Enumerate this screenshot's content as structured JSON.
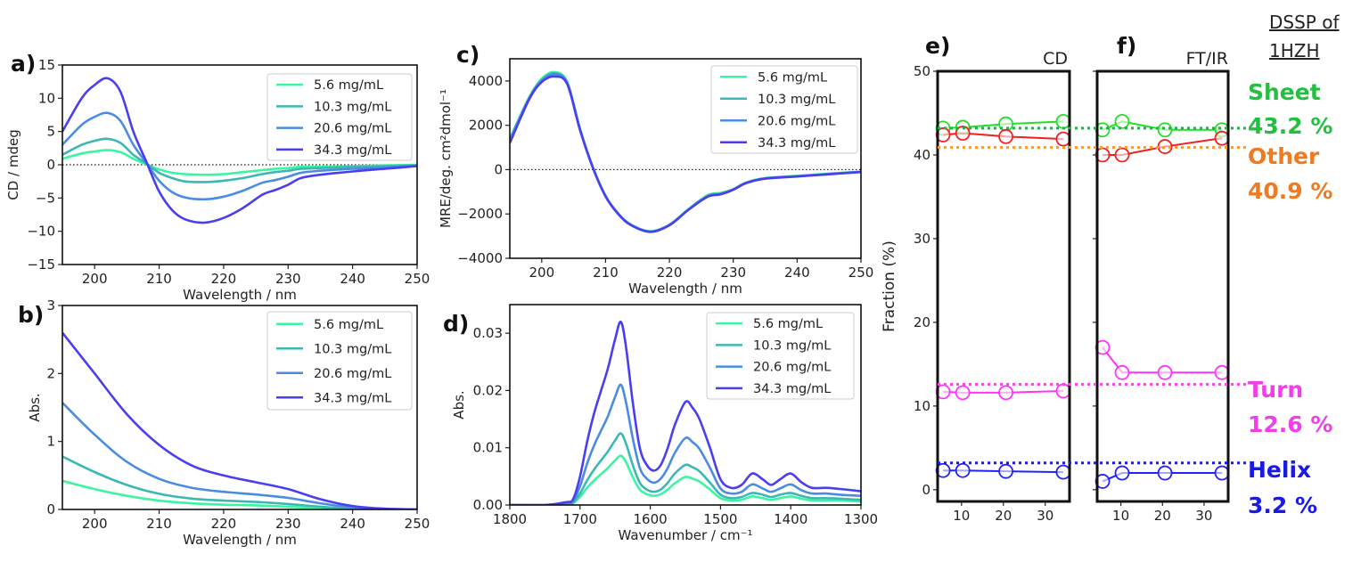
{
  "chart_data": [
    {
      "panel": "a)",
      "type": "line",
      "xlabel": "Wavelength / nm",
      "ylabel": "CD / mdeg",
      "xlim": [
        195,
        250
      ],
      "ylim": [
        -15,
        15
      ],
      "xticks": [
        200,
        210,
        220,
        230,
        240,
        250
      ],
      "xtick_labels": [
        "200",
        "210",
        "220",
        "230",
        "240",
        "250"
      ],
      "yticks": [
        -15,
        -10,
        -5,
        0,
        5,
        10,
        15
      ],
      "ytick_labels": [
        "−15",
        "−10",
        "−5",
        "0",
        "5",
        "10",
        "15"
      ],
      "zero_line": true,
      "legend": "top-right",
      "x": [
        195,
        198,
        200,
        202,
        204,
        206,
        208,
        210,
        212,
        214,
        217,
        220,
        223,
        226,
        228,
        230,
        232,
        235,
        240,
        245,
        250
      ],
      "series": [
        {
          "name": "5.6 mg/mL",
          "color": "#3cf5a0",
          "values": [
            0.9,
            1.7,
            2,
            2.2,
            1.9,
            0.9,
            0.1,
            -0.7,
            -1.2,
            -1.4,
            -1.5,
            -1.4,
            -1.1,
            -0.8,
            -0.6,
            -0.5,
            -0.3,
            -0.3,
            -0.2,
            -0.1,
            0
          ]
        },
        {
          "name": "10.3 mg/mL",
          "color": "#3cb8b4",
          "values": [
            1.5,
            3,
            3.6,
            3.9,
            3.3,
            1.5,
            0.2,
            -1.2,
            -2,
            -2.5,
            -2.6,
            -2.4,
            -2,
            -1.4,
            -1.1,
            -0.9,
            -0.6,
            -0.5,
            -0.3,
            -0.2,
            -0.1
          ]
        },
        {
          "name": "20.6 mg/mL",
          "color": "#4a8ce2",
          "values": [
            3,
            6,
            7.2,
            7.8,
            6.6,
            3,
            0.3,
            -2.4,
            -4.1,
            -4.9,
            -5.2,
            -4.8,
            -3.9,
            -2.7,
            -2.3,
            -1.8,
            -1.2,
            -0.9,
            -0.6,
            -0.4,
            -0.1
          ]
        },
        {
          "name": "34.3 mg/mL",
          "color": "#4a3ef0",
          "values": [
            5,
            10,
            12,
            13,
            11,
            5,
            0.5,
            -4,
            -6.8,
            -8.2,
            -8.7,
            -8,
            -6.5,
            -4.5,
            -3.8,
            -3,
            -2,
            -1.5,
            -1,
            -0.6,
            -0.2
          ]
        }
      ]
    },
    {
      "panel": "b)",
      "type": "line",
      "xlabel": "Wavelength / nm",
      "ylabel": "Abs.",
      "xlim": [
        195,
        250
      ],
      "ylim": [
        0,
        3
      ],
      "xticks": [
        200,
        210,
        220,
        230,
        240,
        250
      ],
      "xtick_labels": [
        "200",
        "210",
        "220",
        "230",
        "240",
        "250"
      ],
      "yticks": [
        0,
        1,
        2,
        3
      ],
      "ytick_labels": [
        "0",
        "1",
        "2",
        "3"
      ],
      "zero_line": false,
      "legend": "top-right",
      "x": [
        195,
        200,
        205,
        210,
        215,
        220,
        225,
        230,
        235,
        240,
        245,
        250
      ],
      "series": [
        {
          "name": "5.6 mg/mL",
          "color": "#3cf5a0",
          "values": [
            0.42,
            0.3,
            0.2,
            0.13,
            0.09,
            0.07,
            0.06,
            0.04,
            0.02,
            0.01,
            0,
            0
          ]
        },
        {
          "name": "10.3 mg/mL",
          "color": "#3cb8b4",
          "values": [
            0.78,
            0.55,
            0.36,
            0.23,
            0.16,
            0.13,
            0.11,
            0.08,
            0.04,
            0.01,
            0,
            0
          ]
        },
        {
          "name": "20.6 mg/mL",
          "color": "#4a8ce2",
          "values": [
            1.57,
            1.1,
            0.7,
            0.45,
            0.32,
            0.26,
            0.22,
            0.17,
            0.09,
            0.03,
            0.01,
            0
          ]
        },
        {
          "name": "34.3 mg/mL",
          "color": "#4a3ef0",
          "values": [
            2.6,
            2.0,
            1.4,
            0.95,
            0.65,
            0.5,
            0.4,
            0.3,
            0.15,
            0.05,
            0.01,
            0
          ]
        }
      ]
    },
    {
      "panel": "c)",
      "type": "line",
      "xlabel": "Wavelength / nm",
      "ylabel": "MRE/deg. cm²dmol⁻¹",
      "xlim": [
        195,
        250
      ],
      "ylim": [
        -4000,
        5000
      ],
      "xticks": [
        200,
        210,
        220,
        230,
        240,
        250
      ],
      "xtick_labels": [
        "200",
        "210",
        "220",
        "230",
        "240",
        "250"
      ],
      "yticks": [
        -4000,
        -2000,
        0,
        2000,
        4000
      ],
      "ytick_labels": [
        "−4000",
        "−2000",
        "0",
        "2000",
        "4000"
      ],
      "zero_line": true,
      "legend": "top-right",
      "x": [
        195,
        198,
        200,
        202,
        204,
        206,
        208,
        210,
        212,
        214,
        217,
        220,
        223,
        226,
        228,
        230,
        232,
        235,
        240,
        245,
        250
      ],
      "series": [
        {
          "name": "5.6 mg/mL",
          "color": "#3cf5a0",
          "values": [
            1400,
            3250,
            4100,
            4400,
            3950,
            1850,
            120,
            -1180,
            -1980,
            -2480,
            -2780,
            -2480,
            -1780,
            -1150,
            -1050,
            -880,
            -580,
            -380,
            -280,
            -180,
            -90
          ]
        },
        {
          "name": "10.3 mg/mL",
          "color": "#3cb8b4",
          "values": [
            1350,
            3220,
            4050,
            4350,
            3920,
            1820,
            110,
            -1190,
            -1990,
            -2490,
            -2790,
            -2490,
            -1790,
            -1180,
            -1080,
            -890,
            -590,
            -390,
            -290,
            -190,
            -95
          ]
        },
        {
          "name": "20.6 mg/mL",
          "color": "#4a8ce2",
          "values": [
            1300,
            3200,
            4000,
            4300,
            3900,
            1800,
            100,
            -1200,
            -2000,
            -2500,
            -2800,
            -2500,
            -1800,
            -1200,
            -1100,
            -900,
            -600,
            -400,
            -300,
            -200,
            -100
          ]
        },
        {
          "name": "34.3 mg/mL",
          "color": "#4a3ef0",
          "values": [
            1200,
            3150,
            3950,
            4200,
            3850,
            1780,
            90,
            -1210,
            -2010,
            -2510,
            -2810,
            -2510,
            -1810,
            -1220,
            -1120,
            -910,
            -610,
            -410,
            -310,
            -210,
            -110
          ]
        }
      ]
    },
    {
      "panel": "d)",
      "type": "line",
      "xlabel": "Wavenumber / cm⁻¹",
      "ylabel": "Abs.",
      "xlim": [
        1800,
        1300
      ],
      "ylim": [
        0,
        0.035
      ],
      "xticks": [
        1800,
        1700,
        1600,
        1500,
        1400,
        1300
      ],
      "xtick_labels": [
        "1800",
        "1700",
        "1600",
        "1500",
        "1400",
        "1300"
      ],
      "yticks": [
        0,
        0.01,
        0.02,
        0.03
      ],
      "ytick_labels": [
        "0.00",
        "0.01",
        "0.02",
        "0.03"
      ],
      "zero_line": false,
      "legend": "top-right",
      "x": [
        1800,
        1750,
        1720,
        1710,
        1700,
        1690,
        1680,
        1670,
        1660,
        1650,
        1642,
        1635,
        1625,
        1615,
        1605,
        1595,
        1585,
        1575,
        1565,
        1550,
        1540,
        1530,
        1515,
        1500,
        1485,
        1470,
        1455,
        1440,
        1428,
        1415,
        1400,
        1385,
        1370,
        1350,
        1330,
        1300
      ],
      "series": [
        {
          "name": "5.6 mg/mL",
          "color": "#3cf5a0",
          "values": [
            0,
            0,
            0.0001,
            0.0003,
            0.0014,
            0.003,
            0.0043,
            0.0054,
            0.0065,
            0.0078,
            0.0086,
            0.0076,
            0.0049,
            0.0027,
            0.0019,
            0.0016,
            0.0019,
            0.0027,
            0.0038,
            0.0049,
            0.0046,
            0.0041,
            0.0027,
            0.0012,
            0.0008,
            0.0009,
            0.0015,
            0.0012,
            0.0009,
            0.0012,
            0.0015,
            0.0011,
            0.0008,
            0.0008,
            0.0008,
            0.0006
          ]
        },
        {
          "name": "10.3 mg/mL",
          "color": "#3cb8b4",
          "values": [
            0,
            0,
            0.0002,
            0.0004,
            0.002,
            0.0043,
            0.0062,
            0.0078,
            0.0094,
            0.0113,
            0.0125,
            0.0109,
            0.007,
            0.0039,
            0.0027,
            0.0023,
            0.0027,
            0.0039,
            0.0055,
            0.007,
            0.0066,
            0.0059,
            0.0039,
            0.0018,
            0.0012,
            0.0014,
            0.0021,
            0.0018,
            0.0014,
            0.0018,
            0.0021,
            0.0016,
            0.0012,
            0.0012,
            0.0011,
            0.0009
          ]
        },
        {
          "name": "20.6 mg/mL",
          "color": "#4a8ce2",
          "values": [
            0,
            0,
            0.0003,
            0.0007,
            0.0033,
            0.0072,
            0.0104,
            0.013,
            0.0156,
            0.0189,
            0.021,
            0.0182,
            0.0117,
            0.0065,
            0.0046,
            0.0039,
            0.0046,
            0.0065,
            0.0091,
            0.0117,
            0.011,
            0.0098,
            0.0065,
            0.0029,
            0.002,
            0.0023,
            0.0036,
            0.0029,
            0.0023,
            0.0029,
            0.0036,
            0.0026,
            0.002,
            0.002,
            0.0018,
            0.0016
          ]
        },
        {
          "name": "34.3 mg/mL",
          "color": "#4a3ef0",
          "values": [
            0,
            0,
            0.0005,
            0.001,
            0.005,
            0.011,
            0.016,
            0.02,
            0.024,
            0.029,
            0.032,
            0.028,
            0.018,
            0.01,
            0.007,
            0.006,
            0.007,
            0.01,
            0.014,
            0.018,
            0.017,
            0.015,
            0.01,
            0.0045,
            0.003,
            0.0035,
            0.0055,
            0.0045,
            0.0035,
            0.0045,
            0.0055,
            0.004,
            0.003,
            0.003,
            0.0028,
            0.0024
          ]
        }
      ]
    },
    {
      "panel": "e)",
      "title": "CD",
      "type": "line-markers",
      "xlabel": "",
      "ylabel": "Fraction (%)",
      "xlim": [
        4.3,
        35.8
      ],
      "ylim": [
        -1.4,
        50
      ],
      "xticks": [
        10,
        20,
        30
      ],
      "xtick_labels": [
        "10",
        "20",
        "30"
      ],
      "yticks": [
        0,
        10,
        20,
        30,
        40,
        50
      ],
      "ytick_labels": [
        "0",
        "10",
        "20",
        "30",
        "40",
        "50"
      ],
      "x": [
        5.6,
        10.3,
        20.6,
        34.3
      ],
      "series": [
        {
          "key": "sheet",
          "color": "#22e022",
          "values": [
            43.2,
            43.3,
            43.7,
            44.0
          ]
        },
        {
          "key": "other",
          "color": "#f02020",
          "values": [
            42.4,
            42.6,
            42.2,
            41.9
          ]
        },
        {
          "key": "turn",
          "color": "#ff33ff",
          "values": [
            11.7,
            11.6,
            11.6,
            11.8
          ]
        },
        {
          "key": "helix",
          "color": "#2222ff",
          "values": [
            2.3,
            2.3,
            2.2,
            2.1
          ]
        }
      ]
    },
    {
      "panel": "f)",
      "title": "FT/IR",
      "type": "line-markers",
      "xlabel": "",
      "ylabel": "",
      "xlim": [
        4.3,
        35.8
      ],
      "ylim": [
        -1.4,
        50
      ],
      "xticks": [
        10,
        20,
        30
      ],
      "xtick_labels": [
        "10",
        "20",
        "30"
      ],
      "yticks": [
        0,
        10,
        20,
        30,
        40,
        50
      ],
      "ytick_labels": [],
      "x": [
        5.6,
        10.3,
        20.6,
        34.3
      ],
      "series": [
        {
          "key": "sheet",
          "color": "#22e022",
          "values": [
            43,
            44,
            43,
            43
          ]
        },
        {
          "key": "other",
          "color": "#f02020",
          "values": [
            40,
            40,
            41,
            42
          ]
        },
        {
          "key": "turn",
          "color": "#ff33ff",
          "values": [
            17,
            14,
            14,
            14
          ]
        },
        {
          "key": "helix",
          "color": "#2222ff",
          "values": [
            1,
            2,
            2,
            2
          ]
        }
      ]
    }
  ],
  "dssp": {
    "heading_line1": "DSSP of",
    "heading_line2": "1HZH",
    "items": [
      {
        "name": "Sheet",
        "value_label": "43.2 %",
        "value": 43.2,
        "color": "#22c040",
        "line_color": "#20b050"
      },
      {
        "name": "Other",
        "value_label": "40.9 %",
        "value": 40.9,
        "color": "#f07a20",
        "line_color": "#ff9933"
      },
      {
        "name": "Turn",
        "value_label": "12.6 %",
        "value": 12.6,
        "color": "#f23de8",
        "line_color": "#ff44ee"
      },
      {
        "name": "Helix",
        "value_label": "3.2 %",
        "value": 3.2,
        "color": "#1a1ae6",
        "line_color": "#1a1ae6"
      }
    ]
  }
}
